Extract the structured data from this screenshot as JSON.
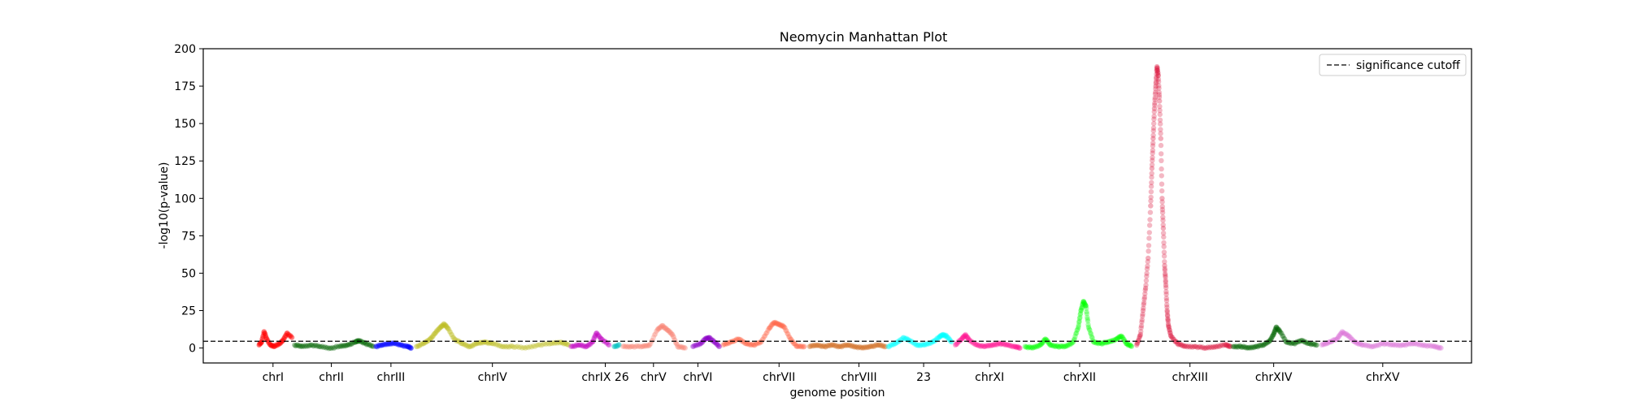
{
  "chart_data": {
    "type": "scatter",
    "title": "Neomycin Manhattan Plot",
    "xlabel": "genome position",
    "ylabel": "-log10(p-value)",
    "xlim": [
      0,
      100
    ],
    "ylim": [
      -10,
      200
    ],
    "yticks": [
      0,
      25,
      50,
      75,
      100,
      125,
      150,
      175,
      200
    ],
    "grid": false,
    "legend": {
      "position": "top-right",
      "entries": [
        {
          "label": "significance cutoff",
          "style": "dashed",
          "color": "#000000"
        }
      ]
    },
    "cutoff": 4.5,
    "xtick_positions": [
      5.5,
      10.1,
      14.8,
      22.8,
      31.7,
      35.5,
      39.0,
      45.4,
      51.7,
      56.8,
      62.0,
      69.1,
      77.8,
      84.4,
      93.0
    ],
    "xtick_labels": [
      "chrI",
      "chrII",
      "chrIII",
      "chrIV",
      "chrIX 26",
      "chrV",
      "chrVI",
      "chrVII",
      "chrVIII",
      "23",
      "chrXI",
      "chrXII",
      "chrXIII",
      "chrXIV",
      "chrXV"
    ],
    "series": [
      {
        "color": "#ff0000",
        "points": [
          [
            4.4,
            2
          ],
          [
            4.6,
            4
          ],
          [
            4.8,
            11
          ],
          [
            5.0,
            6
          ],
          [
            5.3,
            2
          ],
          [
            5.6,
            1
          ],
          [
            6.0,
            3
          ],
          [
            6.3,
            5
          ],
          [
            6.6,
            10
          ],
          [
            7.0,
            7
          ]
        ]
      },
      {
        "color": "#006400",
        "points": [
          [
            7.2,
            2
          ],
          [
            7.8,
            1
          ],
          [
            8.5,
            2
          ],
          [
            9.2,
            1
          ],
          [
            10,
            0
          ],
          [
            10.8,
            1
          ],
          [
            11.4,
            2
          ],
          [
            12,
            4
          ],
          [
            12.3,
            5
          ],
          [
            12.8,
            3
          ],
          [
            13.4,
            1
          ]
        ]
      },
      {
        "color": "#0000ff",
        "points": [
          [
            13.6,
            1
          ],
          [
            14.1,
            2
          ],
          [
            14.6,
            3
          ],
          [
            15.1,
            3
          ],
          [
            15.6,
            2
          ],
          [
            16.1,
            1
          ],
          [
            16.4,
            0
          ]
        ]
      },
      {
        "color": "#bcbd22",
        "points": [
          [
            16.8,
            1
          ],
          [
            17.4,
            3
          ],
          [
            17.9,
            6
          ],
          [
            18.3,
            10
          ],
          [
            18.7,
            14
          ],
          [
            19.0,
            16
          ],
          [
            19.3,
            13
          ],
          [
            19.8,
            6
          ],
          [
            20.4,
            3
          ],
          [
            21,
            1
          ],
          [
            21.6,
            3
          ],
          [
            22.2,
            4
          ],
          [
            22.8,
            3
          ],
          [
            23.6,
            1
          ],
          [
            24.4,
            1
          ],
          [
            25.4,
            0
          ],
          [
            26.4,
            2
          ],
          [
            27.4,
            3
          ],
          [
            28.2,
            4
          ],
          [
            28.8,
            2
          ]
        ]
      },
      {
        "color": "#c000c0",
        "points": [
          [
            29.0,
            1
          ],
          [
            29.6,
            2
          ],
          [
            30.2,
            1
          ],
          [
            30.7,
            4
          ],
          [
            31.0,
            10
          ],
          [
            31.4,
            6
          ],
          [
            32.0,
            2
          ]
        ]
      },
      {
        "color": "#00bfbf",
        "points": [
          [
            32.4,
            1
          ],
          [
            32.8,
            2
          ]
        ]
      },
      {
        "color": "#fa8072",
        "points": [
          [
            33.1,
            1
          ],
          [
            33.8,
            1
          ],
          [
            34.6,
            1
          ],
          [
            35.2,
            2
          ],
          [
            35.8,
            12
          ],
          [
            36.2,
            15
          ],
          [
            36.6,
            12
          ],
          [
            37.0,
            9
          ],
          [
            37.4,
            1
          ],
          [
            38.0,
            0
          ]
        ]
      },
      {
        "color": "#8b00c8",
        "points": [
          [
            38.6,
            1
          ],
          [
            39.2,
            3
          ],
          [
            39.6,
            6
          ],
          [
            39.9,
            7
          ],
          [
            40.3,
            4
          ],
          [
            40.7,
            1
          ]
        ]
      },
      {
        "color": "#ff6347",
        "points": [
          [
            41.0,
            2
          ],
          [
            41.6,
            4
          ],
          [
            42.2,
            6
          ],
          [
            42.8,
            3
          ],
          [
            43.4,
            2
          ],
          [
            44.0,
            4
          ],
          [
            44.6,
            13
          ],
          [
            45.0,
            17
          ],
          [
            45.4,
            16
          ],
          [
            45.8,
            14
          ],
          [
            46.3,
            6
          ],
          [
            46.8,
            1
          ],
          [
            47.4,
            1
          ]
        ]
      },
      {
        "color": "#d2691e",
        "points": [
          [
            47.8,
            1
          ],
          [
            48.4,
            2
          ],
          [
            49.0,
            1
          ],
          [
            49.6,
            2
          ],
          [
            50.2,
            1
          ],
          [
            50.8,
            2
          ],
          [
            51.4,
            1
          ],
          [
            52.0,
            0
          ],
          [
            52.6,
            1
          ],
          [
            53.2,
            2
          ],
          [
            53.8,
            1
          ]
        ]
      },
      {
        "color": "#00ffff",
        "points": [
          [
            54.0,
            1
          ],
          [
            54.6,
            3
          ],
          [
            55.2,
            7
          ],
          [
            55.7,
            5
          ],
          [
            56.3,
            2
          ],
          [
            56.9,
            2
          ],
          [
            57.5,
            4
          ],
          [
            58.0,
            7
          ],
          [
            58.3,
            9
          ],
          [
            58.6,
            8
          ],
          [
            59.0,
            4
          ]
        ]
      },
      {
        "color": "#ff1493",
        "points": [
          [
            59.3,
            2
          ],
          [
            59.8,
            6
          ],
          [
            60.1,
            9
          ],
          [
            60.4,
            5
          ],
          [
            61.0,
            2
          ],
          [
            61.6,
            1
          ],
          [
            62.2,
            2
          ],
          [
            62.8,
            3
          ],
          [
            63.4,
            2
          ],
          [
            64.0,
            1
          ],
          [
            64.4,
            0
          ]
        ]
      },
      {
        "color": "#00ff00",
        "points": [
          [
            64.8,
            1
          ],
          [
            65.4,
            0
          ],
          [
            66.0,
            2
          ],
          [
            66.4,
            6
          ],
          [
            66.8,
            2
          ],
          [
            67.4,
            1
          ],
          [
            68.0,
            1
          ],
          [
            68.6,
            4
          ],
          [
            69.0,
            14
          ],
          [
            69.2,
            25
          ],
          [
            69.4,
            31
          ],
          [
            69.6,
            28
          ],
          [
            69.8,
            14
          ],
          [
            70.2,
            4
          ],
          [
            70.8,
            3
          ],
          [
            71.4,
            4
          ],
          [
            72.0,
            6
          ],
          [
            72.4,
            8
          ],
          [
            72.8,
            3
          ],
          [
            73.2,
            1
          ]
        ]
      },
      {
        "color": "#dc143c",
        "points": [
          [
            73.6,
            2
          ],
          [
            73.9,
            9
          ],
          [
            74.1,
            25
          ],
          [
            74.3,
            40
          ],
          [
            74.5,
            60
          ],
          [
            74.7,
            95
          ],
          [
            74.8,
            120
          ],
          [
            74.9,
            140
          ],
          [
            75.0,
            160
          ],
          [
            75.1,
            175
          ],
          [
            75.2,
            188
          ],
          [
            75.3,
            182
          ],
          [
            75.4,
            165
          ],
          [
            75.5,
            140
          ],
          [
            75.6,
            100
          ],
          [
            75.7,
            80
          ],
          [
            75.8,
            55
          ],
          [
            75.9,
            42
          ],
          [
            76.0,
            25
          ],
          [
            76.1,
            15
          ],
          [
            76.3,
            8
          ],
          [
            76.8,
            3
          ],
          [
            77.4,
            1
          ],
          [
            78.2,
            1
          ],
          [
            79.0,
            0
          ],
          [
            79.8,
            1
          ],
          [
            80.6,
            2
          ],
          [
            81.0,
            1
          ]
        ]
      },
      {
        "color": "#006400",
        "points": [
          [
            81.2,
            1
          ],
          [
            81.8,
            1
          ],
          [
            82.4,
            0
          ],
          [
            83.0,
            1
          ],
          [
            83.6,
            2
          ],
          [
            84.1,
            5
          ],
          [
            84.4,
            9
          ],
          [
            84.6,
            14
          ],
          [
            84.9,
            11
          ],
          [
            85.4,
            4
          ],
          [
            86.0,
            3
          ],
          [
            86.6,
            5
          ],
          [
            87.2,
            3
          ],
          [
            87.8,
            2
          ]
        ]
      },
      {
        "color": "#da70d6",
        "points": [
          [
            88.2,
            2
          ],
          [
            88.8,
            4
          ],
          [
            89.4,
            6
          ],
          [
            89.8,
            11
          ],
          [
            90.3,
            8
          ],
          [
            90.8,
            4
          ],
          [
            91.4,
            2
          ],
          [
            92.2,
            1
          ],
          [
            93.0,
            3
          ],
          [
            93.8,
            2
          ],
          [
            94.6,
            2
          ],
          [
            95.4,
            3
          ],
          [
            96.2,
            2
          ],
          [
            97.0,
            1
          ],
          [
            97.6,
            0
          ]
        ]
      }
    ]
  }
}
